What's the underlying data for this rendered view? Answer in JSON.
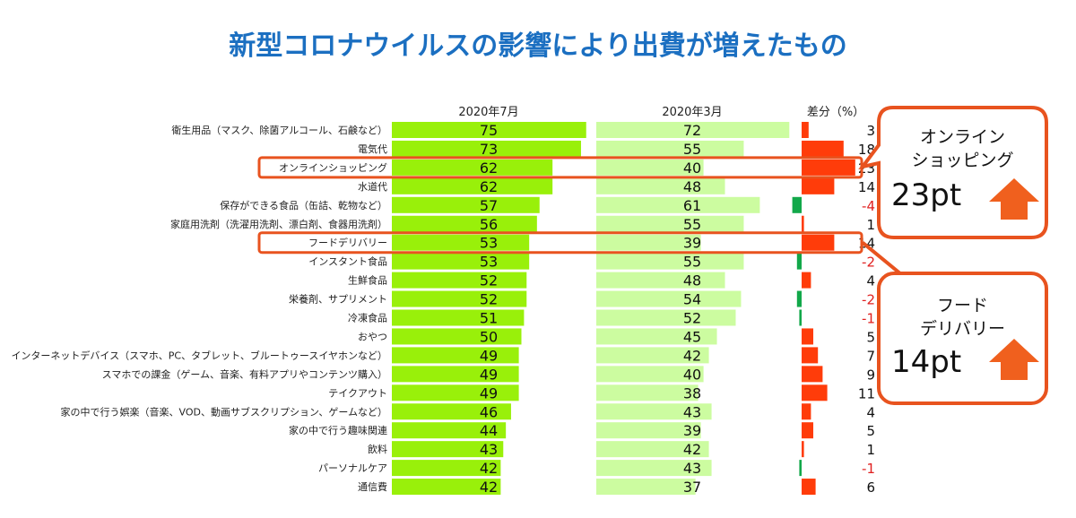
{
  "title": "新型コロナウイルスの影響により出費が増えたもの",
  "chart_data": {
    "type": "bar",
    "orientation": "horizontal",
    "series_headers": [
      "2020年7月",
      "2020年3月",
      "差分（%）"
    ],
    "categories": [
      "衛生用品（マスク、除菌アルコール、石鹸など）",
      "電気代",
      "オンラインショッピング",
      "水道代",
      "保存ができる食品（缶詰、乾物など）",
      "家庭用洗剤（洗濯用洗剤、漂白剤、食器用洗剤）",
      "フードデリバリー",
      "インスタント食品",
      "生鮮食品",
      "栄養剤、サプリメント",
      "冷凍食品",
      "おやつ",
      "インターネットデバイス（スマホ、PC、タブレット、ブルートゥースイヤホンなど）",
      "スマホでの課金（ゲーム、音楽、有料アプリやコンテンツ購入）",
      "テイクアウト",
      "家の中で行う娯楽（音楽、VOD、動画サブスクリプション、ゲームなど）",
      "家の中で行う趣味関連",
      "飲料",
      "パーソナルケア",
      "通信費"
    ],
    "series": [
      {
        "name": "2020年7月",
        "values": [
          75,
          73,
          62,
          62,
          57,
          56,
          53,
          53,
          52,
          52,
          51,
          50,
          49,
          49,
          49,
          46,
          44,
          43,
          42,
          42
        ],
        "color": "#99f00a"
      },
      {
        "name": "2020年3月",
        "values": [
          72,
          55,
          40,
          48,
          61,
          55,
          39,
          55,
          48,
          54,
          52,
          45,
          42,
          40,
          38,
          43,
          39,
          42,
          43,
          37
        ],
        "color": "#ccfca0"
      },
      {
        "name": "差分（%）",
        "values": [
          3,
          18,
          23,
          14,
          -4,
          1,
          14,
          -2,
          4,
          -2,
          -1,
          5,
          7,
          9,
          11,
          4,
          5,
          1,
          -1,
          6
        ],
        "positive_color": "#ff3c0a",
        "negative_color": "#12a84a"
      }
    ],
    "highlighted": [
      "オンラインショッピング",
      "フードデリバリー"
    ]
  },
  "callouts": [
    {
      "label_line1": "オンライン",
      "label_line2": "ショッピング",
      "value": "23pt",
      "icon": "arrow-up-icon"
    },
    {
      "label_line1": "フード",
      "label_line2": "デリバリー",
      "value": "14pt",
      "icon": "arrow-up-icon"
    }
  ],
  "accent_color": "#e8531f"
}
